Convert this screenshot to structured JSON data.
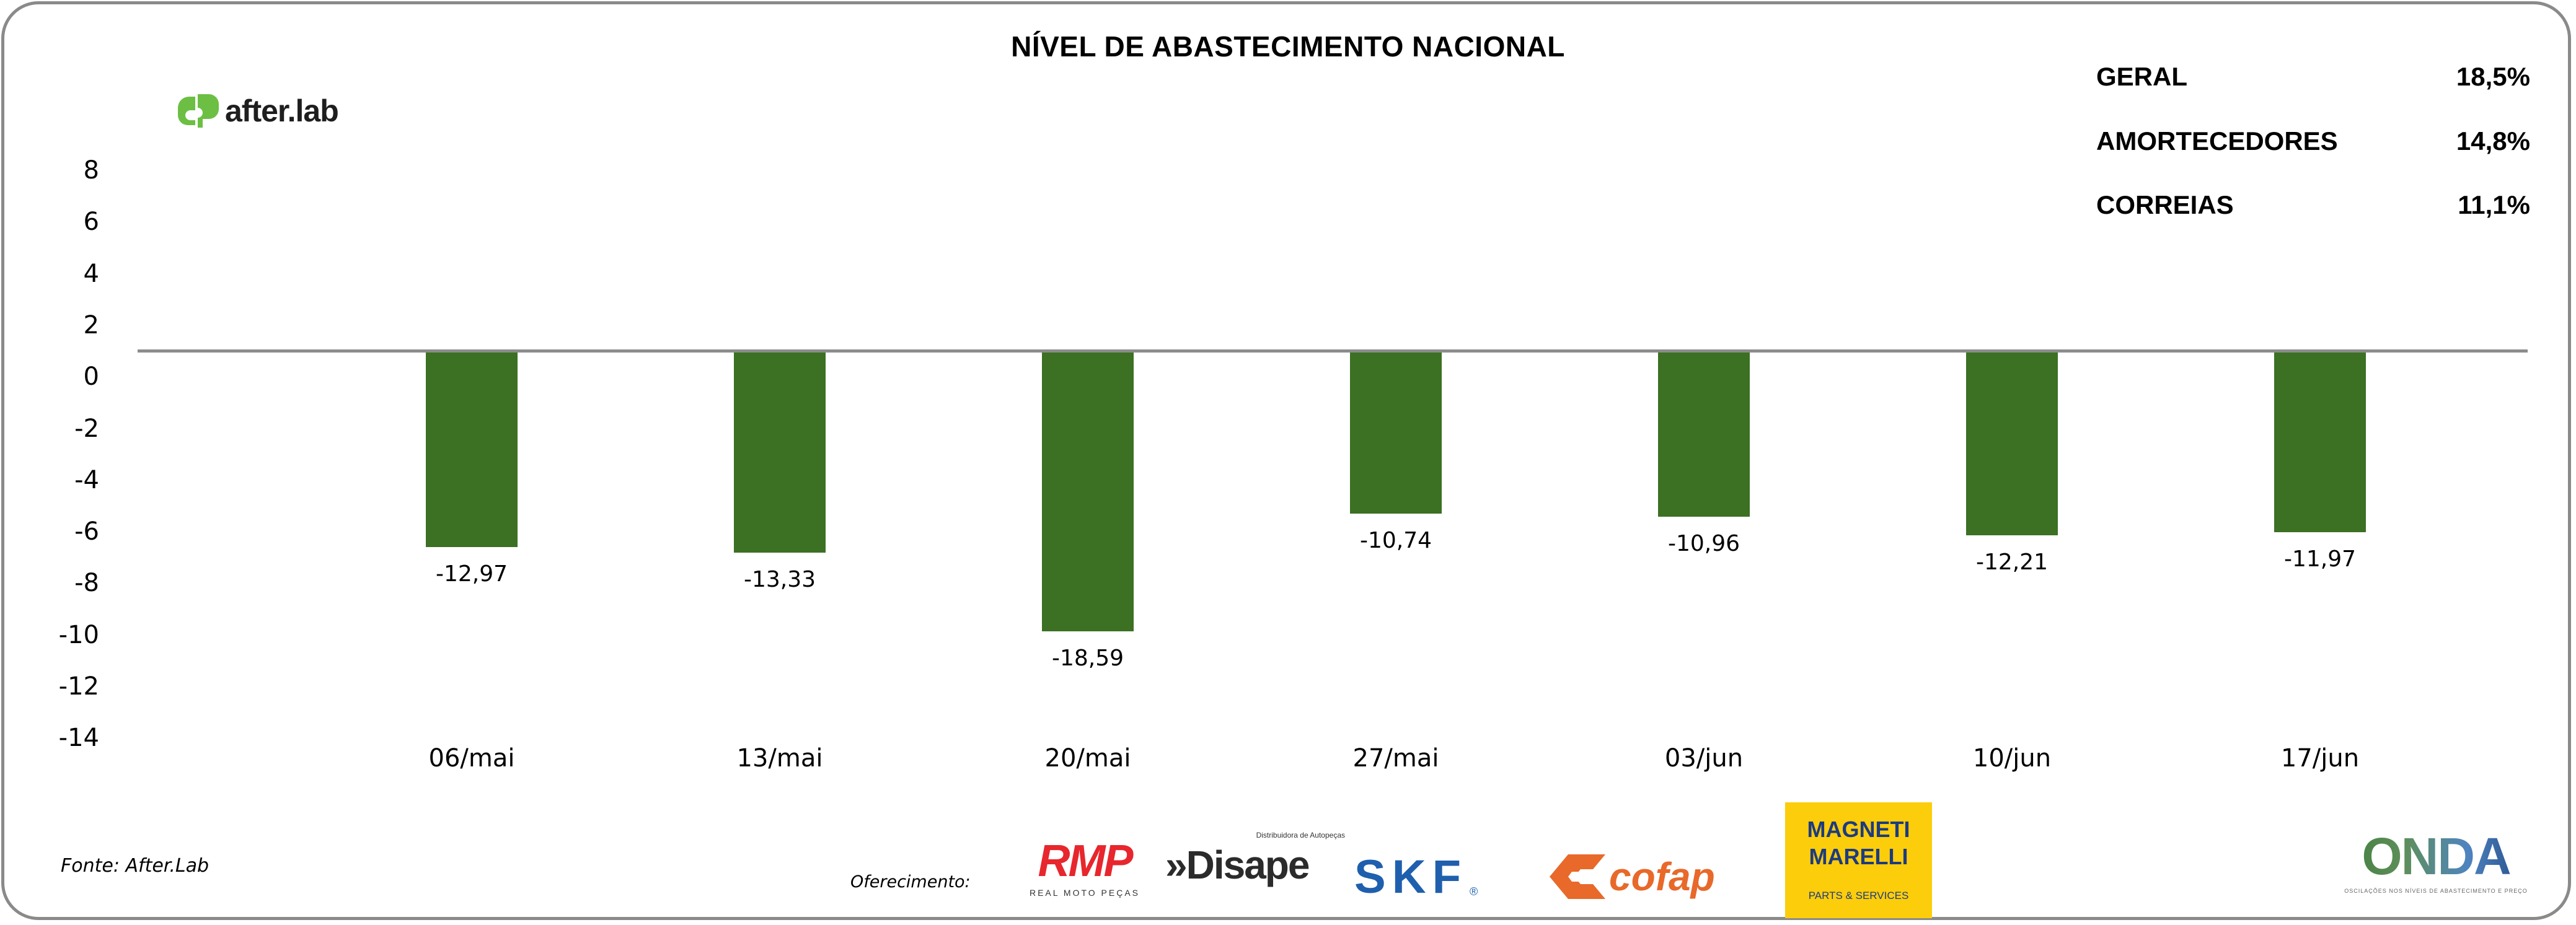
{
  "chart_data": {
    "type": "bar",
    "title": "NÍVEL DE ABASTECIMENTO NACIONAL",
    "xlabel": "",
    "ylabel": "",
    "categories": [
      "06/mai",
      "13/mai",
      "20/mai",
      "27/mai",
      "03/jun",
      "10/jun",
      "17/jun"
    ],
    "values": [
      -12.97,
      -13.33,
      -18.59,
      -10.74,
      -10.96,
      -12.21,
      -11.97
    ],
    "data_labels": [
      "-12,97",
      "-13,33",
      "-18,59",
      "-10,74",
      "-10,96",
      "-12,21",
      "-11,97"
    ],
    "y_ticks": [
      "8",
      "6",
      "4",
      "2",
      "0",
      "-2",
      "-4",
      "-6",
      "-8",
      "-10",
      "-12",
      "-14"
    ],
    "ylim": [
      -14,
      8
    ],
    "grid": false,
    "legend": "none",
    "bar_color": "#3c7023",
    "zero_line_color": "#8c8c8c"
  },
  "branding": {
    "logo_text": "after.lab",
    "logo_color": "#6cbf43"
  },
  "summary": [
    {
      "label": "GERAL",
      "value": "18,5%"
    },
    {
      "label": "AMORTECEDORES",
      "value": "14,8%"
    },
    {
      "label": "CORREIAS",
      "value": "11,1%"
    }
  ],
  "footer": {
    "source": "Fonte: After.Lab",
    "offer_label": "Oferecimento:",
    "sponsors": {
      "rmp": {
        "name": "RMP",
        "sub": "REAL MOTO PEÇAS",
        "color": "#e8262d"
      },
      "disape": {
        "name": "»Disape",
        "sub": "Distribuidora de Autopeças",
        "color": "#2b2b2b"
      },
      "skf": {
        "name": "SKF",
        "reg": "®",
        "color": "#1f5fae"
      },
      "cofap": {
        "name": "cofap",
        "color": "#e8692a"
      },
      "magneti": {
        "name_line1": "MAGNETI",
        "name_line2": "MARELLI",
        "sub": "PARTS & SERVICES",
        "bg": "#fccd0a",
        "color": "#1d3b80"
      },
      "onda": {
        "name": "ONDA",
        "sub": "OSCILAÇÕES NOS NÍVEIS DE ABASTECIMENTO E PREÇO"
      }
    }
  }
}
